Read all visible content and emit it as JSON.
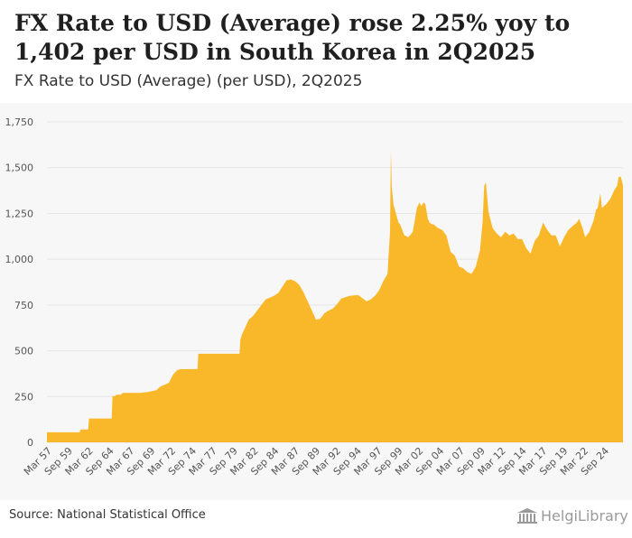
{
  "header": {
    "title": "FX Rate to USD (Average) rose 2.25% yoy to 1,402 per USD in South Korea in 2Q2025",
    "subtitle": "FX Rate to USD (Average) (per USD), 2Q2025"
  },
  "footer": {
    "source": "Source: National Statistical Office",
    "logo": "HelgiLibrary"
  },
  "colors": {
    "area": "#f9b829",
    "grid": "#e6e6e6",
    "background": "#f7f7f7"
  },
  "chart_data": {
    "type": "area",
    "title": "FX Rate to USD (Average) (per USD), 2Q2025",
    "xlabel": "",
    "ylabel": "",
    "ylim": [
      0,
      1750
    ],
    "y_ticks": [
      0,
      250,
      500,
      750,
      1000,
      1250,
      1500,
      1750
    ],
    "y_tick_labels": [
      "0",
      "250",
      "500",
      "750",
      "1,000",
      "1,250",
      "1,500",
      "1,750"
    ],
    "x_range": [
      1957.0,
      2025.5
    ],
    "x_tick_labels": [
      "Mar 57",
      "Sep 59",
      "Mar 62",
      "Sep 64",
      "Mar 67",
      "Sep 69",
      "Mar 72",
      "Sep 74",
      "Mar 77",
      "Sep 79",
      "Mar 82",
      "Sep 84",
      "Mar 87",
      "Sep 89",
      "Mar 92",
      "Sep 94",
      "Mar 97",
      "Sep 99",
      "Mar 02",
      "Sep 04",
      "Mar 07",
      "Sep 09",
      "Mar 12",
      "Sep 14",
      "Mar 17",
      "Sep 19",
      "Mar 22",
      "Sep 24"
    ],
    "grid": true,
    "series": [
      {
        "name": "FX Rate to USD (Average)",
        "x": [
          1957.0,
          1960.9,
          1961.0,
          1961.9,
          1962.0,
          1964.7,
          1964.8,
          1965.0,
          1965.3,
          1965.8,
          1966.0,
          1967.0,
          1968.0,
          1969.0,
          1970.0,
          1970.5,
          1971.0,
          1971.5,
          1972.0,
          1972.5,
          1973.0,
          1974.0,
          1974.9,
          1975.0,
          1979.9,
          1980.0,
          1980.2,
          1980.5,
          1981.0,
          1981.5,
          1982.0,
          1982.5,
          1983.0,
          1984.0,
          1984.5,
          1985.0,
          1985.5,
          1986.0,
          1986.5,
          1987.0,
          1987.5,
          1988.0,
          1988.5,
          1989.0,
          1989.5,
          1990.0,
          1990.5,
          1991.0,
          1991.5,
          1992.0,
          1993.0,
          1994.0,
          1995.0,
          1995.5,
          1996.0,
          1996.5,
          1997.0,
          1997.5,
          1997.8,
          1997.9,
          1998.0,
          1998.2,
          1998.5,
          1998.8,
          1999.0,
          1999.5,
          2000.0,
          2000.5,
          2001.0,
          2001.3,
          2001.5,
          2001.8,
          2002.0,
          2002.3,
          2002.5,
          2002.8,
          2003.0,
          2003.5,
          2004.0,
          2004.5,
          2005.0,
          2005.5,
          2006.0,
          2006.5,
          2007.0,
          2007.5,
          2008.0,
          2008.5,
          2008.8,
          2009.0,
          2009.2,
          2009.5,
          2010.0,
          2010.5,
          2011.0,
          2011.5,
          2012.0,
          2012.5,
          2013.0,
          2013.5,
          2014.0,
          2014.5,
          2015.0,
          2015.5,
          2016.0,
          2016.5,
          2017.0,
          2017.5,
          2018.0,
          2018.5,
          2019.0,
          2019.5,
          2020.0,
          2020.3,
          2020.7,
          2021.0,
          2021.5,
          2022.0,
          2022.3,
          2022.5,
          2022.8,
          2023.0,
          2023.5,
          2024.0,
          2024.5,
          2024.8,
          2025.0,
          2025.25,
          2025.5
        ],
        "values": [
          55,
          55,
          70,
          70,
          130,
          130,
          255,
          250,
          260,
          260,
          270,
          270,
          270,
          275,
          285,
          305,
          315,
          325,
          370,
          395,
          400,
          400,
          400,
          484,
          484,
          560,
          590,
          620,
          670,
          690,
          720,
          750,
          780,
          800,
          815,
          850,
          885,
          890,
          880,
          860,
          820,
          770,
          720,
          670,
          675,
          705,
          720,
          730,
          755,
          785,
          800,
          805,
          770,
          780,
          800,
          830,
          880,
          920,
          1150,
          1600,
          1400,
          1300,
          1250,
          1200,
          1190,
          1130,
          1120,
          1150,
          1280,
          1310,
          1290,
          1310,
          1300,
          1220,
          1200,
          1190,
          1190,
          1170,
          1160,
          1130,
          1040,
          1020,
          960,
          950,
          930,
          920,
          960,
          1050,
          1200,
          1400,
          1420,
          1260,
          1170,
          1140,
          1120,
          1150,
          1130,
          1140,
          1110,
          1110,
          1060,
          1030,
          1100,
          1130,
          1200,
          1160,
          1130,
          1130,
          1070,
          1120,
          1160,
          1180,
          1200,
          1220,
          1170,
          1120,
          1150,
          1210,
          1270,
          1280,
          1360,
          1280,
          1300,
          1330,
          1380,
          1400,
          1450,
          1450,
          1402
        ]
      }
    ]
  }
}
